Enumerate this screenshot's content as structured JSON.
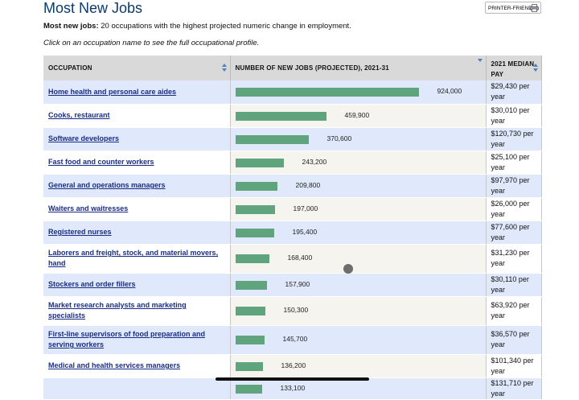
{
  "page": {
    "title": "Most New Jobs",
    "printer_label": "PRINTER-FRIENDLY",
    "intro_bold": "Most new jobs:",
    "intro_text": " 20 occupations with the highest projected numeric change in employment.",
    "hint": "Click on an occupation name to see the full occupational profile."
  },
  "table": {
    "headers": {
      "occupation": "OCCUPATION",
      "new_jobs": "NUMBER OF NEW JOBS (PROJECTED), 2021-31",
      "pay_line1": "2021 MEDIAN",
      "pay_line2": "PAY"
    },
    "max_jobs": 924000,
    "rows": [
      {
        "name": "Home health and personal care aides",
        "jobs": 924000,
        "label": "924,000",
        "pay": "$29,430 per year"
      },
      {
        "name": "Cooks, restaurant",
        "jobs": 459900,
        "label": "459,900",
        "pay": "$30,010 per year"
      },
      {
        "name": "Software developers",
        "jobs": 370600,
        "label": "370,600",
        "pay": "$120,730 per year"
      },
      {
        "name": "Fast food and counter workers",
        "jobs": 243200,
        "label": "243,200",
        "pay": "$25,100 per year"
      },
      {
        "name": "General and operations managers",
        "jobs": 209800,
        "label": "209,800",
        "pay": "$97,970 per year"
      },
      {
        "name": "Waiters and waitresses",
        "jobs": 197000,
        "label": "197,000",
        "pay": "$26,000 per year"
      },
      {
        "name": "Registered nurses",
        "jobs": 195400,
        "label": "195,400",
        "pay": "$77,600 per year"
      },
      {
        "name": "Laborers and freight, stock, and material movers, hand",
        "jobs": 168400,
        "label": "168,400",
        "pay": "$31,230 per year"
      },
      {
        "name": "Stockers and order fillers",
        "jobs": 157900,
        "label": "157,900",
        "pay": "$30,110 per year"
      },
      {
        "name": "Market research analysts and marketing specialists",
        "jobs": 150300,
        "label": "150,300",
        "pay": "$63,920 per year"
      },
      {
        "name": "First-line supervisors of food preparation and serving workers",
        "jobs": 145700,
        "label": "145,700",
        "pay": "$36,570 per year"
      },
      {
        "name": "Medical and health services managers",
        "jobs": 136200,
        "label": "136,200",
        "pay": "$101,340 per year"
      },
      {
        "name": "",
        "jobs": 133100,
        "label": "133,100",
        "pay": "$131,710 per year"
      }
    ]
  },
  "colors": {
    "title": "#0b3a6d",
    "link": "#1a2d86",
    "bar": "#5fa47d",
    "row_alt": "#dfe9fb",
    "header_bg": "#d9d9d9"
  }
}
